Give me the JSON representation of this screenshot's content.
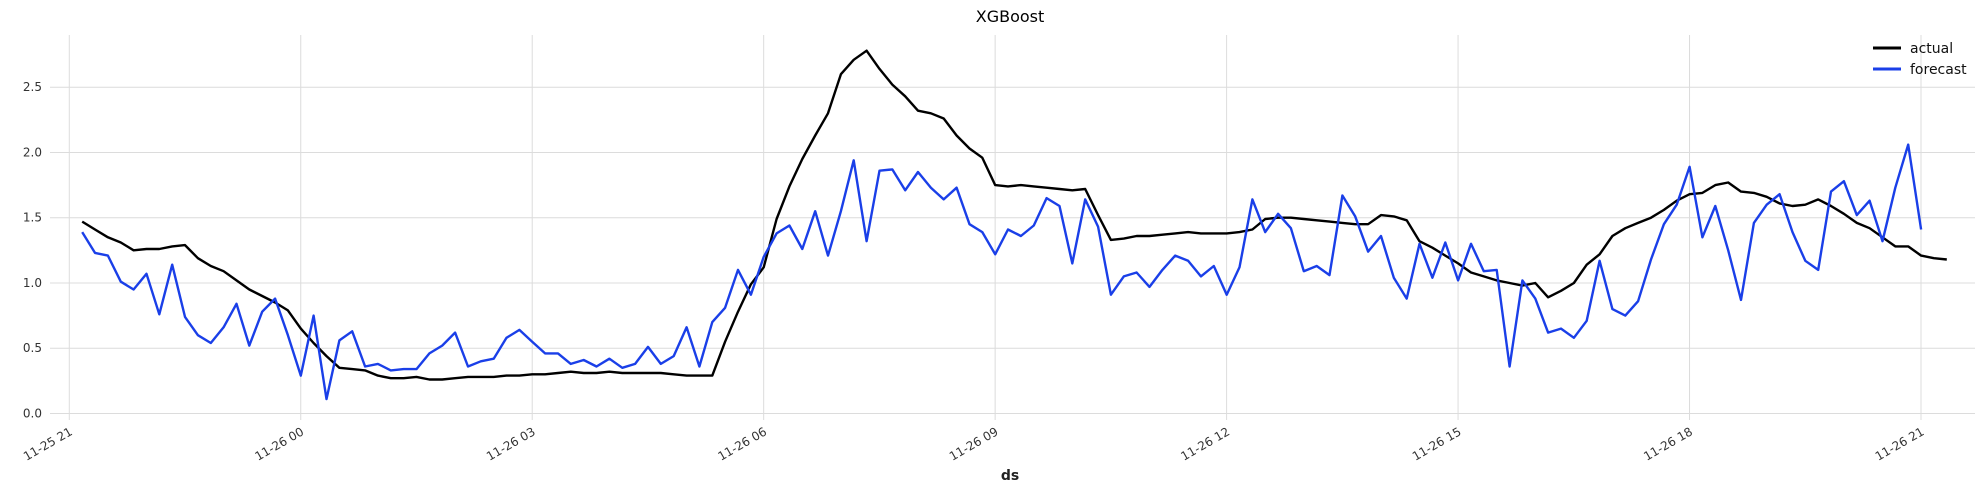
{
  "chart_data": {
    "type": "line",
    "title": "XGBoost",
    "xlabel": "ds",
    "ylabel": "",
    "x_start": "11-25 21:00",
    "x_end": "11-26 21:00",
    "xlim_hours": [
      -0.25,
      24.7
    ],
    "ylim": [
      -0.05,
      2.9
    ],
    "grid": true,
    "legend_position": "top-right",
    "x_ticks": [
      "11-25 21",
      "11-26 00",
      "11-26 03",
      "11-26 06",
      "11-26 09",
      "11-26 12",
      "11-26 15",
      "11-26 18",
      "11-26 21"
    ],
    "y_ticks": [
      "0.0",
      "0.5",
      "1.0",
      "1.5",
      "2.0",
      "2.5"
    ],
    "series": [
      {
        "name": "actual",
        "color": "#000000",
        "start_hour": 0.167,
        "step_hours": 0.16667,
        "values": [
          1.47,
          1.41,
          1.35,
          1.31,
          1.25,
          1.26,
          1.26,
          1.28,
          1.29,
          1.19,
          1.13,
          1.09,
          1.02,
          0.95,
          0.9,
          0.85,
          0.79,
          0.65,
          0.54,
          0.44,
          0.35,
          0.34,
          0.33,
          0.29,
          0.27,
          0.27,
          0.28,
          0.26,
          0.26,
          0.27,
          0.28,
          0.28,
          0.28,
          0.29,
          0.29,
          0.3,
          0.3,
          0.31,
          0.32,
          0.31,
          0.31,
          0.32,
          0.31,
          0.31,
          0.31,
          0.31,
          0.3,
          0.29,
          0.29,
          0.29,
          0.55,
          0.78,
          0.99,
          1.12,
          1.49,
          1.74,
          1.95,
          2.13,
          2.3,
          2.6,
          2.71,
          2.78,
          2.64,
          2.52,
          2.43,
          2.32,
          2.3,
          2.26,
          2.13,
          2.03,
          1.96,
          1.75,
          1.74,
          1.75,
          1.74,
          1.73,
          1.72,
          1.71,
          1.72,
          1.52,
          1.33,
          1.34,
          1.36,
          1.36,
          1.37,
          1.38,
          1.39,
          1.38,
          1.38,
          1.38,
          1.39,
          1.41,
          1.49,
          1.5,
          1.5,
          1.49,
          1.48,
          1.47,
          1.46,
          1.45,
          1.45,
          1.52,
          1.51,
          1.48,
          1.32,
          1.27,
          1.21,
          1.15,
          1.08,
          1.05,
          1.02,
          1.0,
          0.98,
          1.0,
          0.89,
          0.94,
          1.0,
          1.14,
          1.22,
          1.36,
          1.42,
          1.46,
          1.5,
          1.56,
          1.63,
          1.68,
          1.69,
          1.75,
          1.77,
          1.7,
          1.69,
          1.66,
          1.61,
          1.59,
          1.6,
          1.64,
          1.59,
          1.53,
          1.46,
          1.42,
          1.35,
          1.28,
          1.28,
          1.21,
          1.19,
          1.18
        ]
      },
      {
        "name": "forecast",
        "color": "#1a3fe8",
        "start_hour": 0.167,
        "step_hours": 0.16667,
        "values": [
          1.39,
          1.23,
          1.21,
          1.01,
          0.95,
          1.07,
          0.76,
          1.14,
          0.74,
          0.6,
          0.54,
          0.66,
          0.84,
          0.52,
          0.78,
          0.88,
          0.6,
          0.29,
          0.75,
          0.11,
          0.56,
          0.63,
          0.36,
          0.38,
          0.33,
          0.34,
          0.34,
          0.46,
          0.52,
          0.62,
          0.36,
          0.4,
          0.42,
          0.58,
          0.64,
          0.55,
          0.46,
          0.46,
          0.38,
          0.41,
          0.36,
          0.42,
          0.35,
          0.38,
          0.51,
          0.38,
          0.44,
          0.66,
          0.36,
          0.7,
          0.81,
          1.1,
          0.91,
          1.2,
          1.38,
          1.44,
          1.26,
          1.55,
          1.21,
          1.55,
          1.94,
          1.32,
          1.86,
          1.87,
          1.71,
          1.85,
          1.73,
          1.64,
          1.73,
          1.45,
          1.39,
          1.22,
          1.41,
          1.36,
          1.44,
          1.65,
          1.59,
          1.15,
          1.64,
          1.43,
          0.91,
          1.05,
          1.08,
          0.97,
          1.1,
          1.21,
          1.17,
          1.05,
          1.13,
          0.91,
          1.12,
          1.64,
          1.39,
          1.53,
          1.42,
          1.09,
          1.13,
          1.06,
          1.67,
          1.51,
          1.24,
          1.36,
          1.04,
          0.88,
          1.3,
          1.04,
          1.31,
          1.02,
          1.3,
          1.09,
          1.1,
          0.36,
          1.02,
          0.88,
          0.62,
          0.65,
          0.58,
          0.71,
          1.17,
          0.8,
          0.75,
          0.86,
          1.18,
          1.45,
          1.6,
          1.89,
          1.35,
          1.59,
          1.25,
          0.87,
          1.46,
          1.6,
          1.68,
          1.39,
          1.17,
          1.1,
          1.7,
          1.78,
          1.52,
          1.63,
          1.32,
          1.73,
          2.06,
          1.41
        ]
      }
    ]
  }
}
